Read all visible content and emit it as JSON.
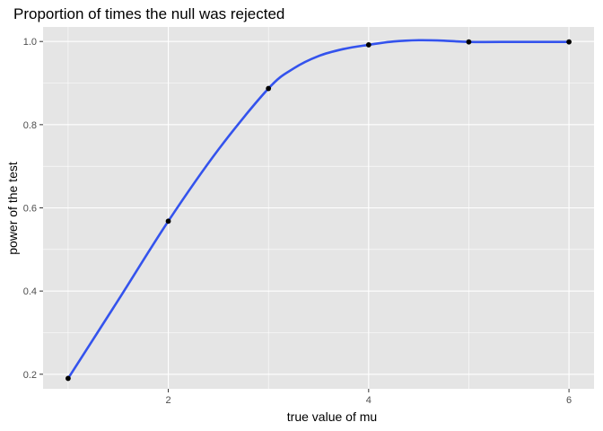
{
  "chart_data": {
    "type": "scatter",
    "title": "Proportion of times the null was rejected",
    "xlabel": "true value of mu",
    "ylabel": "power of the test",
    "x": [
      1,
      2,
      3,
      4,
      5,
      6
    ],
    "y": [
      0.19,
      0.568,
      0.887,
      0.992,
      0.999,
      0.999
    ],
    "smooth_line": {
      "x": [
        1,
        1.5,
        2,
        2.5,
        3,
        3.25,
        3.5,
        3.75,
        4,
        4.25,
        4.5,
        4.75,
        5,
        5.5,
        6
      ],
      "y": [
        0.19,
        0.378,
        0.568,
        0.74,
        0.887,
        0.935,
        0.965,
        0.982,
        0.992,
        1.0,
        1.003,
        1.002,
        0.999,
        0.999,
        0.999
      ]
    },
    "xlim": [
      0.75,
      6.25
    ],
    "ylim": [
      0.165,
      1.035
    ],
    "x_ticks": [
      2,
      4,
      6
    ],
    "x_tick_labels": [
      "2",
      "4",
      "6"
    ],
    "y_ticks": [
      0.2,
      0.4,
      0.6,
      0.8,
      1.0
    ],
    "y_tick_labels": [
      "0.2",
      "0.4",
      "0.6",
      "0.8",
      "1.0"
    ],
    "grid": true,
    "colors": {
      "panel": "#e5e5e5",
      "grid_major": "#ffffff",
      "line": "#3453ed",
      "points": "#000000"
    }
  }
}
